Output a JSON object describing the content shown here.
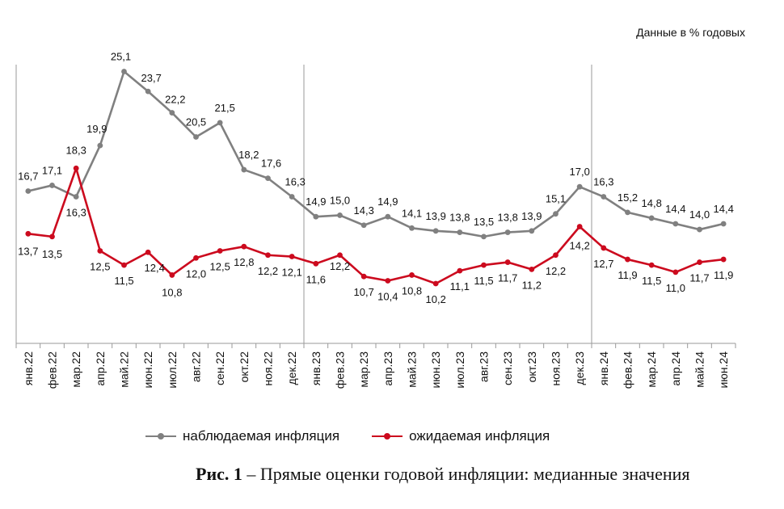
{
  "units_note": "Данные в % годовых",
  "caption": {
    "label": "Рис. 1",
    "text": " – Прямые оценки годовой инфляции: медианные значения"
  },
  "colors": {
    "observed": "#808080",
    "expected": "#cc0a1e",
    "axis": "#9a9a9a",
    "text": "#111111"
  },
  "chart_data": {
    "type": "line",
    "title": "",
    "xlabel": "",
    "ylabel": "",
    "ylim": [
      6,
      27
    ],
    "grid": false,
    "legend": "bottom",
    "categories": [
      "янв.22",
      "фев.22",
      "мар.22",
      "апр.22",
      "май.22",
      "июн.22",
      "июл.22",
      "авг.22",
      "сен.22",
      "окт.22",
      "ноя.22",
      "дек.22",
      "янв.23",
      "фев.23",
      "мар.23",
      "апр.23",
      "май.23",
      "июн.23",
      "июл.23",
      "авг.23",
      "сен.23",
      "окт.23",
      "ноя.23",
      "дек.23",
      "янв.24",
      "фев.24",
      "мар.24",
      "апр.24",
      "май.24",
      "июн.24"
    ],
    "year_separators_after": [
      "дек.22",
      "дек.23"
    ],
    "series": [
      {
        "name": "наблюдаемая  инфляция",
        "color": "#808080",
        "values": [
          16.7,
          17.1,
          16.3,
          19.9,
          25.1,
          23.7,
          22.2,
          20.5,
          21.5,
          18.2,
          17.6,
          16.3,
          14.9,
          15.0,
          14.3,
          14.9,
          14.1,
          13.9,
          13.8,
          13.5,
          13.8,
          13.9,
          15.1,
          17.0,
          16.3,
          15.2,
          14.8,
          14.4,
          14.0,
          14.4
        ],
        "labels": [
          "16,7",
          "17,1",
          "16,3",
          "19,9",
          "25,1",
          "23,7",
          "22,2",
          "20,5",
          "21,5",
          "18,2",
          "17,6",
          "16,3",
          "14,9",
          "15,0",
          "14,3",
          "14,9",
          "14,1",
          "13,9",
          "13,8",
          "13,5",
          "13,8",
          "13,9",
          "15,1",
          "17,0",
          "16,3",
          "15,2",
          "14,8",
          "14,4",
          "14,0",
          "14,4"
        ]
      },
      {
        "name": "ожидаемая  инфляция",
        "color": "#cc0a1e",
        "values": [
          13.7,
          13.5,
          18.3,
          12.5,
          11.5,
          12.4,
          10.8,
          12.0,
          12.5,
          12.8,
          12.2,
          12.1,
          11.6,
          12.2,
          10.7,
          10.4,
          10.8,
          10.2,
          11.1,
          11.5,
          11.7,
          11.2,
          12.2,
          14.2,
          12.7,
          11.9,
          11.5,
          11.0,
          11.7,
          11.9
        ],
        "labels": [
          "13,7",
          "13,5",
          "18,3",
          "12,5",
          "11,5",
          "12,4",
          "10,8",
          "12,0",
          "12,5",
          "12,8",
          "12,2",
          "12,1",
          "11,6",
          "12,2",
          "10,7",
          "10,4",
          "10,8",
          "10,2",
          "11,1",
          "11,5",
          "11,7",
          "11,2",
          "12,2",
          "14,2",
          "12,7",
          "11,9",
          "11,5",
          "11,0",
          "11,7",
          "11,9"
        ]
      }
    ]
  }
}
